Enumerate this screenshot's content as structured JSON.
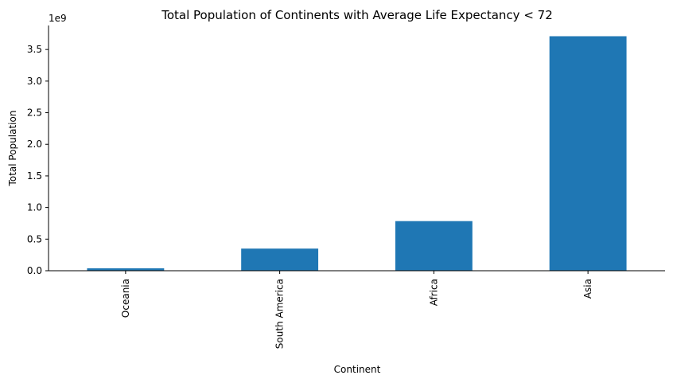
{
  "chart_data": {
    "type": "bar",
    "title": "Total Population of Continents with Average Life Expectancy < 72",
    "xlabel": "Continent",
    "ylabel": "Total Population",
    "y_offset_label": "1e9",
    "categories": [
      "Oceania",
      "South America",
      "Africa",
      "Asia"
    ],
    "values": [
      39000000,
      350000000,
      785000000,
      3710000000
    ],
    "ylim": [
      0,
      3880000000
    ],
    "yticks": [
      0,
      500000000,
      1000000000,
      1500000000,
      2000000000,
      2500000000,
      3000000000,
      3500000000
    ],
    "ytick_labels": [
      "0.0",
      "0.5",
      "1.0",
      "1.5",
      "2.0",
      "2.5",
      "3.0",
      "3.5"
    ],
    "bar_color": "#1f77b4",
    "grid": false,
    "legend": "none"
  }
}
